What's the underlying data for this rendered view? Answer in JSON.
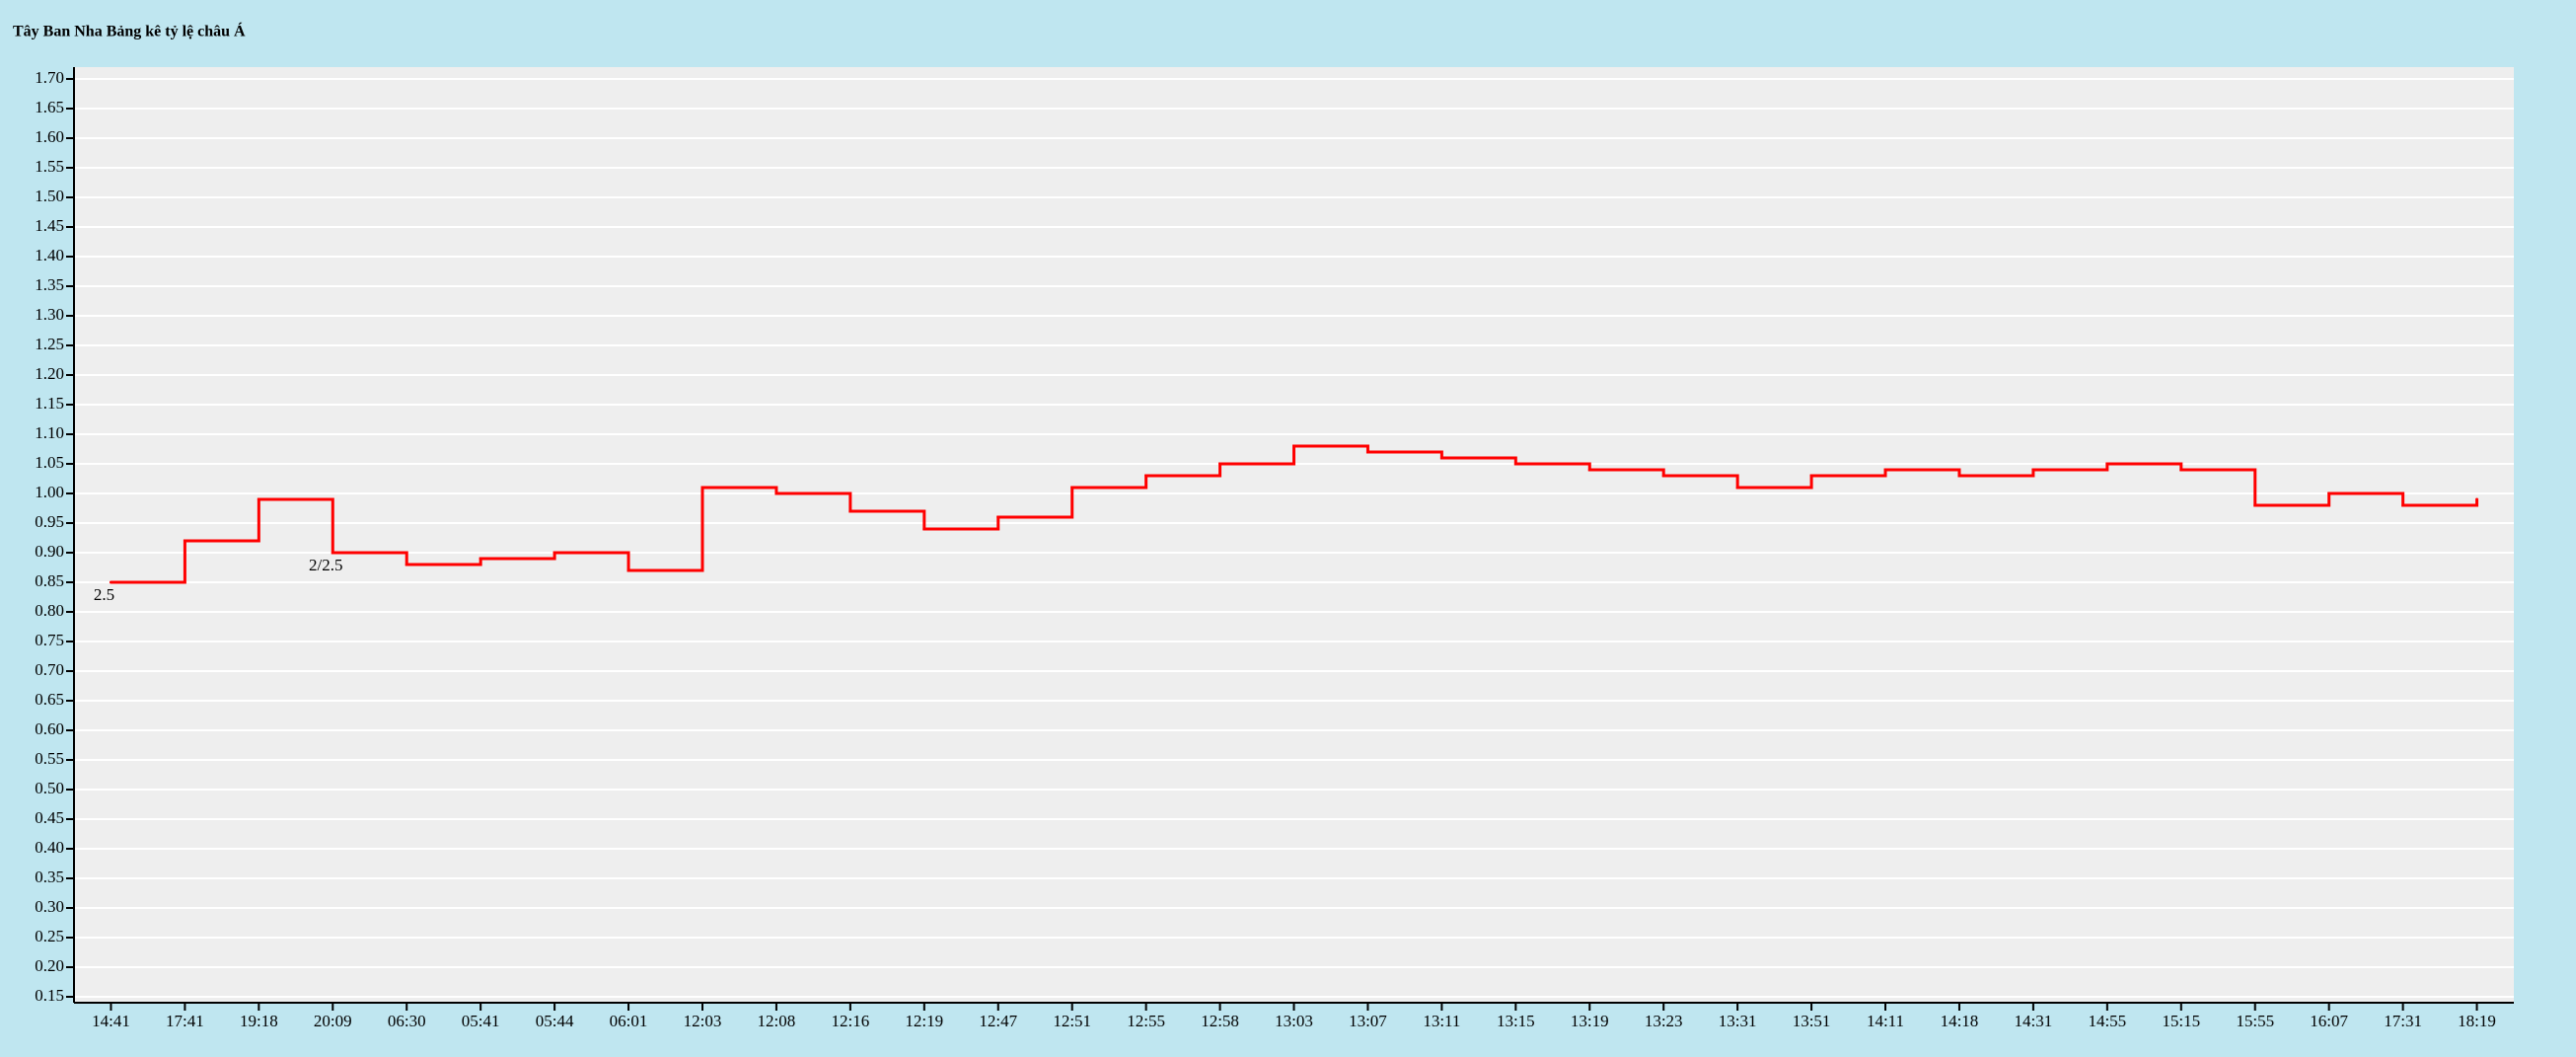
{
  "chart_data": {
    "type": "step",
    "title": "Tây Ban Nha Bảng kê tỷ lệ châu Á",
    "categories": [
      "14:41",
      "17:41",
      "19:18",
      "20:09",
      "06:30",
      "05:41",
      "05:44",
      "06:01",
      "12:03",
      "12:08",
      "12:16",
      "12:19",
      "12:47",
      "12:51",
      "12:55",
      "12:58",
      "13:03",
      "13:07",
      "13:11",
      "13:15",
      "13:19",
      "13:23",
      "13:31",
      "13:51",
      "14:11",
      "14:18",
      "14:31",
      "14:55",
      "15:15",
      "15:55",
      "16:07",
      "17:31",
      "18:19"
    ],
    "values": [
      0.85,
      0.92,
      0.99,
      0.9,
      0.88,
      0.89,
      0.9,
      0.87,
      1.01,
      1.0,
      0.97,
      0.94,
      0.96,
      1.01,
      1.03,
      1.05,
      1.08,
      1.07,
      1.06,
      1.05,
      1.04,
      1.03,
      1.01,
      1.03,
      1.04,
      1.03,
      1.04,
      1.05,
      1.04,
      0.98,
      1.0,
      0.98,
      0.99
    ],
    "color": "#ff0000",
    "annotations": [
      {
        "x": "14:41",
        "text": "2.5"
      },
      {
        "x": "20:09",
        "text": "2/2.5"
      }
    ],
    "ylim": [
      0.14,
      1.72
    ],
    "yticks": [
      {
        "value": 0.15,
        "label": "0.15"
      },
      {
        "value": 0.2,
        "label": "0.20"
      },
      {
        "value": 0.25,
        "label": "0.25"
      },
      {
        "value": 0.3,
        "label": "0.30"
      },
      {
        "value": 0.35,
        "label": "0.35"
      },
      {
        "value": 0.4,
        "label": "0.40"
      },
      {
        "value": 0.45,
        "label": "0.45"
      },
      {
        "value": 0.5,
        "label": "0.50"
      },
      {
        "value": 0.55,
        "label": "0.55"
      },
      {
        "value": 0.6,
        "label": "0.60"
      },
      {
        "value": 0.65,
        "label": "0.65"
      },
      {
        "value": 0.7,
        "label": "0.70"
      },
      {
        "value": 0.75,
        "label": "0.75"
      },
      {
        "value": 0.8,
        "label": "0.80"
      },
      {
        "value": 0.85,
        "label": "0.85"
      },
      {
        "value": 0.9,
        "label": "0.90"
      },
      {
        "value": 0.95,
        "label": "0.95"
      },
      {
        "value": 1.0,
        "label": "1.00"
      },
      {
        "value": 1.05,
        "label": "1.05"
      },
      {
        "value": 1.1,
        "label": "1.10"
      },
      {
        "value": 1.15,
        "label": "1.15"
      },
      {
        "value": 1.2,
        "label": "1.20"
      },
      {
        "value": 1.25,
        "label": "1.25"
      },
      {
        "value": 1.3,
        "label": "1.30"
      },
      {
        "value": 1.35,
        "label": "1.35"
      },
      {
        "value": 1.4,
        "label": "1.40"
      },
      {
        "value": 1.45,
        "label": "1.45"
      },
      {
        "value": 1.5,
        "label": "1.50"
      },
      {
        "value": 1.55,
        "label": "1.55"
      },
      {
        "value": 1.6,
        "label": "1.60"
      },
      {
        "value": 1.65,
        "label": "1.65"
      },
      {
        "value": 1.7,
        "label": "1.70"
      }
    ],
    "grid": true
  }
}
